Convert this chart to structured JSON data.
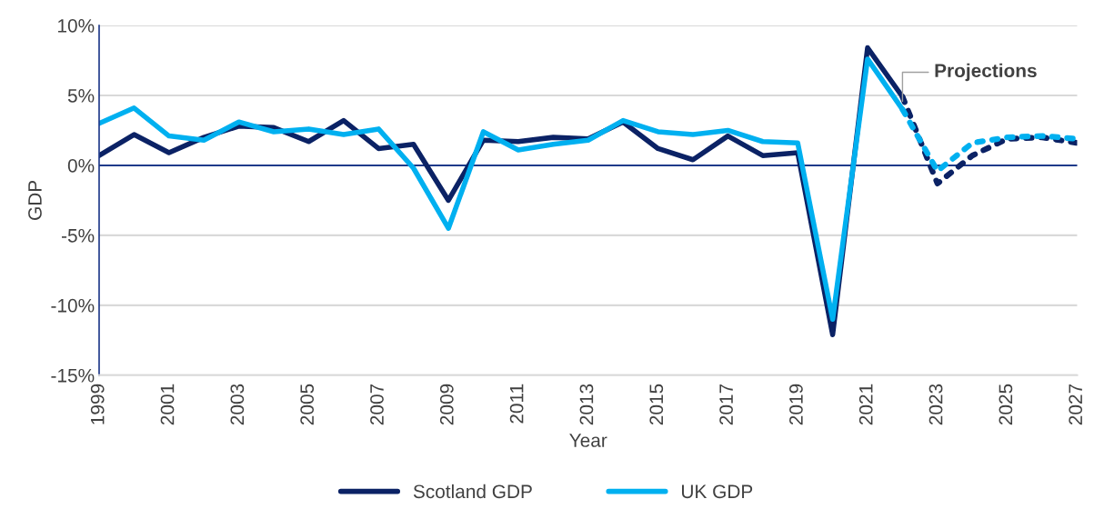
{
  "chart_data": {
    "type": "line",
    "xlabel": "Year",
    "ylabel": "GDP",
    "xlim": [
      1999,
      2027
    ],
    "ylim": [
      -15,
      10
    ],
    "yticks": [
      {
        "value": -15,
        "label": "-15%"
      },
      {
        "value": -10,
        "label": "-10%"
      },
      {
        "value": -5,
        "label": "-5%"
      },
      {
        "value": 0,
        "label": "0%"
      },
      {
        "value": 5,
        "label": "5%"
      },
      {
        "value": 10,
        "label": "10%"
      }
    ],
    "xticks": [
      1999,
      2001,
      2003,
      2005,
      2007,
      2009,
      2011,
      2013,
      2015,
      2017,
      2019,
      2021,
      2023,
      2025,
      2027
    ],
    "ref_lines": [
      {
        "axis": "y",
        "value": 0,
        "color": "#1f3a8a"
      }
    ],
    "grid": "y",
    "legend": "bottom",
    "marker": "none",
    "series": [
      {
        "name": "Scotland GDP",
        "color": "#0b2265",
        "line_style": "solid",
        "x": [
          1999,
          2000,
          2001,
          2002,
          2003,
          2004,
          2005,
          2006,
          2007,
          2008,
          2009,
          2010,
          2011,
          2012,
          2013,
          2014,
          2015,
          2016,
          2017,
          2018,
          2019,
          2020,
          2021,
          2022
        ],
        "values": [
          0.7,
          2.2,
          0.9,
          2.0,
          2.8,
          2.7,
          1.7,
          3.2,
          1.2,
          1.5,
          -2.5,
          1.8,
          1.7,
          2.0,
          1.9,
          3.1,
          1.2,
          0.4,
          2.1,
          0.7,
          0.9,
          -12.1,
          8.4,
          4.9
        ]
      },
      {
        "name": "UK GDP",
        "color": "#00b0f0",
        "line_style": "solid",
        "x": [
          1999,
          2000,
          2001,
          2002,
          2003,
          2004,
          2005,
          2006,
          2007,
          2008,
          2009,
          2010,
          2011,
          2012,
          2013,
          2014,
          2015,
          2016,
          2017,
          2018,
          2019,
          2020,
          2021,
          2022
        ],
        "values": [
          3.0,
          4.1,
          2.1,
          1.8,
          3.1,
          2.4,
          2.6,
          2.2,
          2.6,
          -0.2,
          -4.5,
          2.4,
          1.1,
          1.5,
          1.8,
          3.2,
          2.4,
          2.2,
          2.5,
          1.7,
          1.6,
          -11.0,
          7.6,
          4.0
        ]
      },
      {
        "color": "#0b2265",
        "line_style": "dotted",
        "x": [
          2022,
          2023,
          2024,
          2025,
          2026,
          2027
        ],
        "values": [
          4.9,
          -1.3,
          0.7,
          1.9,
          2.0,
          1.6
        ]
      },
      {
        "color": "#00b0f0",
        "line_style": "dotted",
        "x": [
          2022,
          2023,
          2024,
          2025,
          2026,
          2027
        ],
        "values": [
          4.0,
          -0.4,
          1.6,
          2.0,
          2.1,
          1.9
        ]
      }
    ],
    "annotations": [
      {
        "text": "Projections",
        "x": 2022,
        "y": 4.4
      }
    ]
  }
}
